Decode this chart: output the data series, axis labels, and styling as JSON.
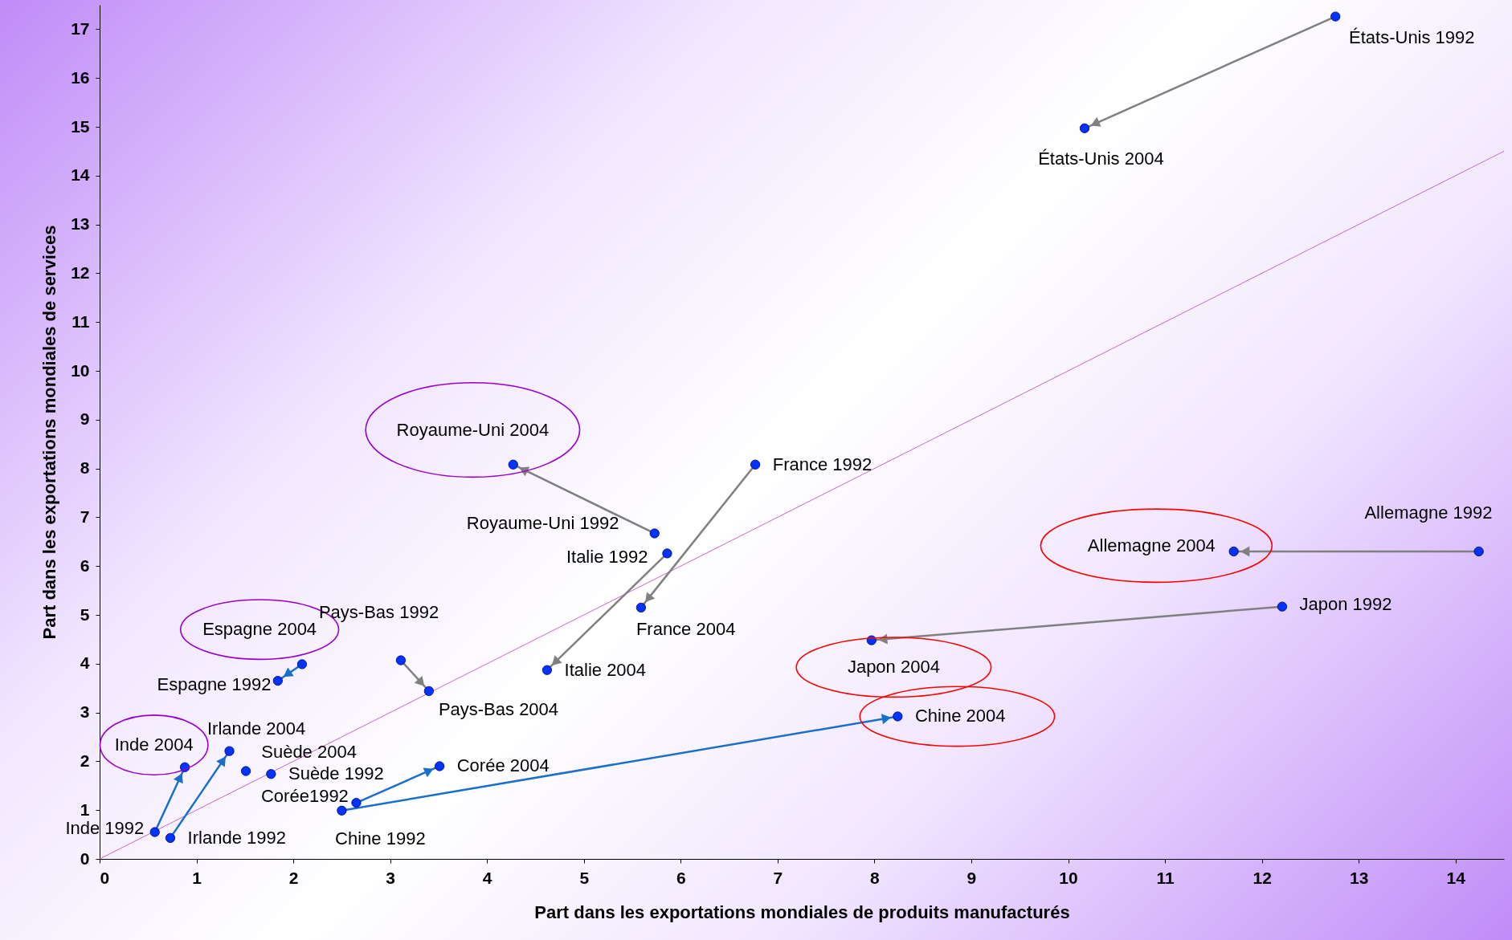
{
  "chart_data": {
    "type": "scatter",
    "xlabel": "Part dans les exportations mondiales de produits manufacturés",
    "ylabel": "Part dans les exportations mondiales de services",
    "xlim": [
      0,
      14.5
    ],
    "ylim": [
      0,
      17.5
    ],
    "xticks": [
      0,
      1,
      2,
      3,
      4,
      5,
      6,
      7,
      8,
      9,
      10,
      11,
      12,
      13,
      14
    ],
    "yticks": [
      0,
      1,
      2,
      3,
      4,
      5,
      6,
      7,
      8,
      9,
      10,
      11,
      12,
      13,
      14,
      15,
      16,
      17
    ],
    "series": [
      {
        "type": "line",
        "color": "#cc66cc",
        "marker": "none",
        "x": [
          0,
          14.5
        ],
        "values": [
          0,
          14.5
        ]
      },
      {
        "type": "line",
        "color": "#808080",
        "x": [
          12.76,
          10.17
        ],
        "values": [
          17.26,
          14.97
        ]
      },
      {
        "type": "line",
        "color": "#808080",
        "x": [
          5.73,
          4.27
        ],
        "values": [
          6.67,
          8.08
        ]
      },
      {
        "type": "line",
        "color": "#808080",
        "x": [
          5.86,
          4.62
        ],
        "values": [
          6.26,
          3.87
        ]
      },
      {
        "type": "line",
        "color": "#808080",
        "x": [
          6.77,
          5.59
        ],
        "values": [
          8.08,
          5.15
        ]
      },
      {
        "type": "line",
        "color": "#808080",
        "x": [
          14.24,
          11.71
        ],
        "values": [
          6.3,
          6.3
        ]
      },
      {
        "type": "line",
        "color": "#808080",
        "x": [
          12.21,
          7.97
        ],
        "values": [
          5.17,
          4.48
        ]
      },
      {
        "type": "line",
        "color": "#808080",
        "x": [
          3.11,
          3.4
        ],
        "values": [
          4.07,
          3.44
        ]
      },
      {
        "type": "line",
        "color": "#1a6fcc",
        "x": [
          2.09,
          1.84
        ],
        "values": [
          3.99,
          3.65
        ]
      },
      {
        "type": "line",
        "color": "#1a6fcc",
        "x": [
          0.57,
          0.88
        ],
        "values": [
          0.55,
          1.88
        ]
      },
      {
        "type": "line",
        "color": "#1a6fcc",
        "x": [
          0.73,
          1.34
        ],
        "values": [
          0.43,
          2.21
        ]
      },
      {
        "type": "line",
        "color": "#1a6fcc",
        "x": [
          2.65,
          3.51
        ],
        "values": [
          1.15,
          1.9
        ]
      },
      {
        "type": "line",
        "color": "#1a6fcc",
        "x": [
          2.5,
          8.24
        ],
        "values": [
          0.99,
          2.92
        ]
      },
      {
        "type": "scatter",
        "color": "#0033ff",
        "marker": "circle",
        "x": [
          12.76,
          10.17,
          4.27,
          5.73,
          5.86,
          6.77,
          5.59,
          4.62,
          14.24,
          11.71,
          12.21,
          7.97,
          8.24,
          2.5,
          2.65,
          3.51,
          3.11,
          3.4,
          1.84,
          2.09,
          1.51,
          1.77,
          1.34,
          0.73,
          0.88,
          0.57
        ],
        "values": [
          17.26,
          14.97,
          8.08,
          6.67,
          6.26,
          8.08,
          5.15,
          3.87,
          6.3,
          6.3,
          5.17,
          4.48,
          2.92,
          0.99,
          1.15,
          1.9,
          4.07,
          3.44,
          3.65,
          3.99,
          1.8,
          1.74,
          2.21,
          0.43,
          1.88,
          0.55
        ]
      }
    ],
    "annotations": [
      {
        "text": "États-Unis 1992",
        "x": 12.76,
        "y": 17.26
      },
      {
        "text": "États-Unis 2004",
        "x": 10.17,
        "y": 14.97
      },
      {
        "text": "Royaume-Uni 2004",
        "x": 4.27,
        "y": 8.08
      },
      {
        "text": "Royaume-Uni 1992",
        "x": 5.73,
        "y": 6.67
      },
      {
        "text": "Italie 1992",
        "x": 5.86,
        "y": 6.26
      },
      {
        "text": "France 1992",
        "x": 6.77,
        "y": 8.08
      },
      {
        "text": "France 2004",
        "x": 5.59,
        "y": 5.15
      },
      {
        "text": "Italie 2004",
        "x": 4.62,
        "y": 3.87
      },
      {
        "text": "Allemagne 1992",
        "x": 14.24,
        "y": 6.3
      },
      {
        "text": "Allemagne 2004",
        "x": 11.71,
        "y": 6.3
      },
      {
        "text": "Japon 1992",
        "x": 12.21,
        "y": 5.17
      },
      {
        "text": "Japon 2004",
        "x": 7.97,
        "y": 4.48
      },
      {
        "text": "Chine 2004",
        "x": 8.24,
        "y": 2.92
      },
      {
        "text": "Chine 1992",
        "x": 2.5,
        "y": 0.99
      },
      {
        "text": "Corée1992",
        "x": 2.65,
        "y": 1.15
      },
      {
        "text": "Corée 2004",
        "x": 3.51,
        "y": 1.9
      },
      {
        "text": "Pays-Bas 1992",
        "x": 3.11,
        "y": 4.07
      },
      {
        "text": "Pays-Bas 2004",
        "x": 3.4,
        "y": 3.44
      },
      {
        "text": "Espagne 1992",
        "x": 1.84,
        "y": 3.65
      },
      {
        "text": "Espagne 2004",
        "x": 2.09,
        "y": 3.99
      },
      {
        "text": "Suède 2004",
        "x": 1.51,
        "y": 1.8
      },
      {
        "text": "Suède 1992",
        "x": 1.77,
        "y": 1.74
      },
      {
        "text": "Irlande 2004",
        "x": 1.34,
        "y": 2.21
      },
      {
        "text": "Irlande 1992",
        "x": 0.73,
        "y": 0.43
      },
      {
        "text": "Inde 2004",
        "x": 0.88,
        "y": 1.88
      },
      {
        "text": "Inde 1992",
        "x": 0.57,
        "y": 0.55
      }
    ]
  }
}
